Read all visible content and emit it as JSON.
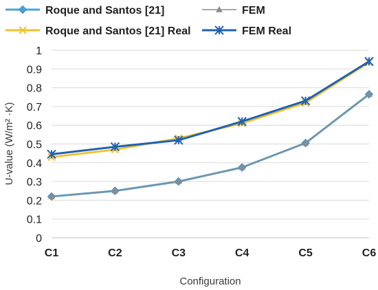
{
  "chart_data": {
    "type": "line",
    "categories": [
      "C1",
      "C2",
      "C3",
      "C4",
      "C5",
      "C6"
    ],
    "series": [
      {
        "name": "Roque and Santos [21]",
        "values": [
          0.22,
          0.25,
          0.3,
          0.375,
          0.505,
          0.765
        ],
        "color": "#4aa3d8",
        "marker": "diamond"
      },
      {
        "name": "FEM",
        "values": [
          0.22,
          0.25,
          0.3,
          0.375,
          0.505,
          0.765
        ],
        "color": "#8c8c8c",
        "marker": "triangle"
      },
      {
        "name": "Roque and Santos [21] Real",
        "values": [
          0.43,
          0.47,
          0.53,
          0.61,
          0.72,
          0.935
        ],
        "color": "#f2c12e",
        "marker": "x"
      },
      {
        "name": "FEM Real",
        "values": [
          0.445,
          0.485,
          0.52,
          0.62,
          0.73,
          0.94
        ],
        "color": "#1f62b3",
        "marker": "asterisk"
      }
    ],
    "xlabel": "Configuration",
    "ylabel": "U-value (W/m² ·K)",
    "ylim": [
      0,
      1
    ],
    "yticks": [
      "0",
      "0.1",
      "0.2",
      "0.3",
      "0.4",
      "0.5",
      "0.6",
      "0.7",
      "0.8",
      "0.9",
      "1"
    ],
    "grid": "horizontal",
    "legend_position": "top"
  }
}
